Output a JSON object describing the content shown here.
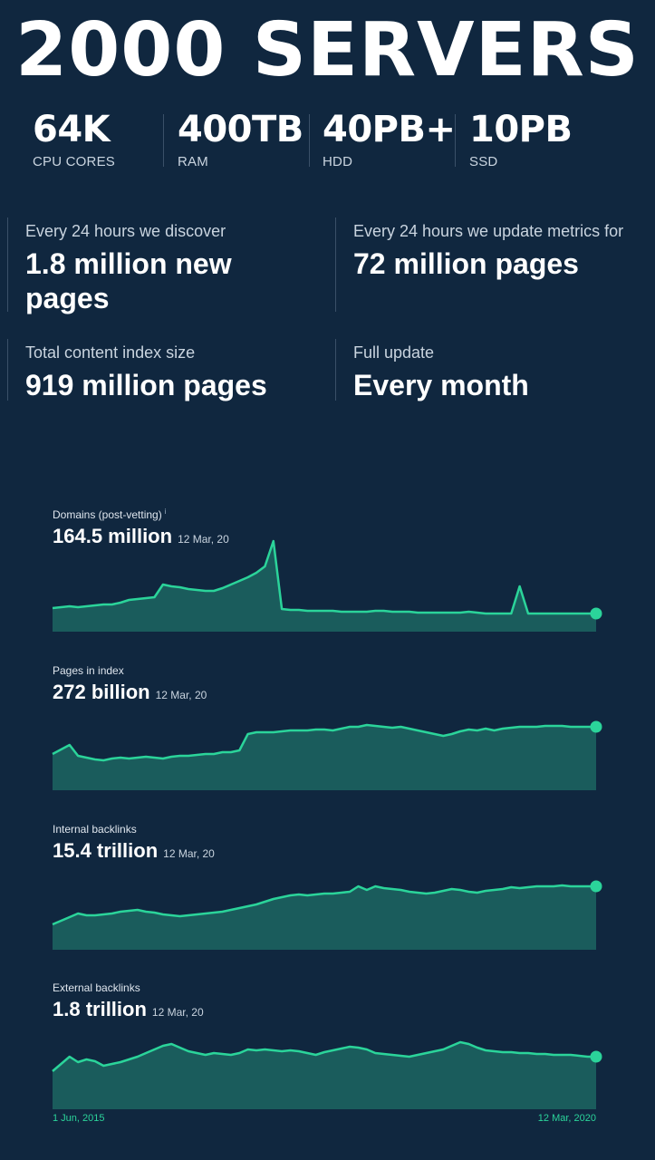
{
  "hero": {
    "title": "2000 SERVERS"
  },
  "specs": [
    {
      "value": "64K",
      "label": "CPU CORES"
    },
    {
      "value": "400TB",
      "label": "RAM"
    },
    {
      "value": "40PB+",
      "label": "HDD"
    },
    {
      "value": "10PB",
      "label": "SSD"
    }
  ],
  "stats": [
    {
      "label": "Every 24 hours we discover",
      "value": "1.8 million new pages"
    },
    {
      "label": "Every 24 hours we update metrics for",
      "value": "72 million pages"
    },
    {
      "label": "Total content index size",
      "value": "919 million pages"
    },
    {
      "label": "Full update",
      "value": "Every month"
    }
  ],
  "colors": {
    "background": "#10273f",
    "accent": "#2bd49a",
    "area_fill": "#1a5c5c"
  },
  "chart_data": [
    {
      "type": "area",
      "title": "Domains (post-vetting)",
      "info_icon": "i",
      "latest_value": "164.5 million",
      "latest_date": "12 Mar, 20",
      "x_range": [
        "1 Jun, 2015",
        "12 Mar, 2020"
      ],
      "values": [
        0.26,
        0.27,
        0.28,
        0.27,
        0.28,
        0.29,
        0.3,
        0.3,
        0.32,
        0.35,
        0.36,
        0.37,
        0.38,
        0.52,
        0.5,
        0.49,
        0.47,
        0.46,
        0.45,
        0.45,
        0.48,
        0.52,
        0.56,
        0.6,
        0.65,
        0.72,
        1.0,
        0.25,
        0.24,
        0.24,
        0.23,
        0.23,
        0.23,
        0.23,
        0.22,
        0.22,
        0.22,
        0.22,
        0.23,
        0.23,
        0.22,
        0.22,
        0.22,
        0.21,
        0.21,
        0.21,
        0.21,
        0.21,
        0.21,
        0.22,
        0.21,
        0.2,
        0.2,
        0.2,
        0.2,
        0.5,
        0.2,
        0.2,
        0.2,
        0.2,
        0.2,
        0.2,
        0.2,
        0.2,
        0.2
      ]
    },
    {
      "type": "area",
      "title": "Pages in index",
      "latest_value": "272 billion",
      "latest_date": "12 Mar, 20",
      "x_range": [
        "1 Jun, 2015",
        "12 Mar, 2020"
      ],
      "values": [
        0.4,
        0.45,
        0.5,
        0.38,
        0.36,
        0.34,
        0.33,
        0.35,
        0.36,
        0.35,
        0.36,
        0.37,
        0.36,
        0.35,
        0.37,
        0.38,
        0.38,
        0.39,
        0.4,
        0.4,
        0.42,
        0.42,
        0.44,
        0.62,
        0.64,
        0.64,
        0.64,
        0.65,
        0.66,
        0.66,
        0.66,
        0.67,
        0.67,
        0.66,
        0.68,
        0.7,
        0.7,
        0.72,
        0.71,
        0.7,
        0.69,
        0.7,
        0.68,
        0.66,
        0.64,
        0.62,
        0.6,
        0.62,
        0.65,
        0.67,
        0.66,
        0.68,
        0.66,
        0.68,
        0.69,
        0.7,
        0.7,
        0.7,
        0.71,
        0.71,
        0.71,
        0.7,
        0.7,
        0.7,
        0.7
      ]
    },
    {
      "type": "area",
      "title": "Internal backlinks",
      "latest_value": "15.4 trillion",
      "latest_date": "12 Mar, 20",
      "x_range": [
        "1 Jun, 2015",
        "12 Mar, 2020"
      ],
      "values": [
        0.28,
        0.32,
        0.36,
        0.4,
        0.38,
        0.38,
        0.39,
        0.4,
        0.42,
        0.43,
        0.44,
        0.42,
        0.41,
        0.39,
        0.38,
        0.37,
        0.38,
        0.39,
        0.4,
        0.41,
        0.42,
        0.44,
        0.46,
        0.48,
        0.5,
        0.53,
        0.56,
        0.58,
        0.6,
        0.61,
        0.6,
        0.61,
        0.62,
        0.62,
        0.63,
        0.64,
        0.7,
        0.66,
        0.7,
        0.68,
        0.67,
        0.66,
        0.64,
        0.63,
        0.62,
        0.63,
        0.65,
        0.67,
        0.66,
        0.64,
        0.63,
        0.65,
        0.66,
        0.67,
        0.69,
        0.68,
        0.69,
        0.7,
        0.7,
        0.7,
        0.71,
        0.7,
        0.7,
        0.7,
        0.7
      ]
    },
    {
      "type": "area",
      "title": "External backlinks",
      "latest_value": "1.8 trillion",
      "latest_date": "12 Mar, 20",
      "x_range": [
        "1 Jun, 2015",
        "12 Mar, 2020"
      ],
      "values": [
        0.42,
        0.5,
        0.58,
        0.52,
        0.55,
        0.53,
        0.48,
        0.5,
        0.52,
        0.55,
        0.58,
        0.62,
        0.66,
        0.7,
        0.72,
        0.68,
        0.64,
        0.62,
        0.6,
        0.62,
        0.61,
        0.6,
        0.62,
        0.66,
        0.65,
        0.66,
        0.65,
        0.64,
        0.65,
        0.64,
        0.62,
        0.6,
        0.63,
        0.65,
        0.67,
        0.69,
        0.68,
        0.66,
        0.62,
        0.61,
        0.6,
        0.59,
        0.58,
        0.6,
        0.62,
        0.64,
        0.66,
        0.7,
        0.74,
        0.72,
        0.68,
        0.65,
        0.64,
        0.63,
        0.63,
        0.62,
        0.62,
        0.61,
        0.61,
        0.6,
        0.6,
        0.6,
        0.59,
        0.58,
        0.58
      ]
    }
  ],
  "xaxis": {
    "start": "1 Jun, 2015",
    "end": "12 Mar, 2020"
  }
}
